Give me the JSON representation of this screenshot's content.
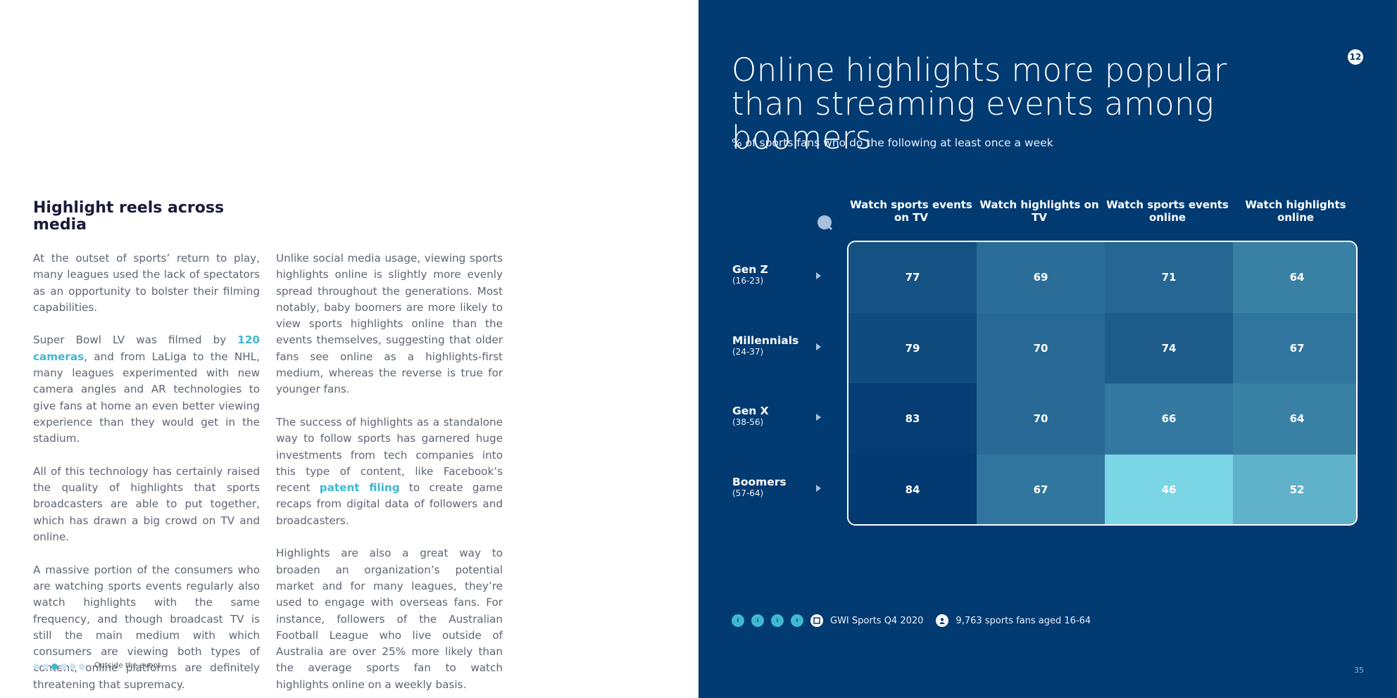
{
  "left_page": {
    "section_title": "Highlight reels across media",
    "column1": {
      "p1": "At the outset of sports’ return to play, many leagues used the lack of spectators as an opportunity to bolster their filming capabilities.",
      "p2_before": "Super Bowl LV was filmed by ",
      "p2_link": "120 cameras",
      "p2_after": ", and from LaLiga to the NHL, many leagues experimented with new camera angles and AR technologies to give fans at home an even better viewing experience than they would get in the stadium.",
      "p3": "All of this technology has certainly raised the quality of highlights that sports broadcasters are able to put together, which has drawn a big crowd on TV and online.",
      "p4": "A massive portion of the consumers who are watching sports events regularly also watch highlights with the same frequency, and though broadcast TV is still the main medium with which consumers are viewing both types of content, online platforms are definitely threatening that supremacy."
    },
    "column2": {
      "p1": "Unlike social media usage, viewing sports highlights online is slightly more evenly spread throughout the generations. Most notably, baby boomers are more likely to view sports highlights online than the events themselves, suggesting that older fans see online as a highlights-first medium, whereas the reverse is true for younger fans.",
      "p2_before": "The success of highlights as a standalone way to follow sports has garnered huge investments from tech companies into this type of content, like Facebook’s recent ",
      "p2_link": "patent filing",
      "p2_after": " to create game recaps from digital data of followers and broadcasters.",
      "p3": "Highlights are also a great way to broaden an organization’s potential market and for many leagues, they’re used to engage with overseas fans. For instance, followers of the Australian Football League who live outside of Australia are over 25% more likely than the average sports fan to watch highlights online on a weekly basis."
    },
    "section_label": "Outside the event",
    "accent_color": "#3fb8d0"
  },
  "right_page": {
    "title": "Online highlights more popular than streaming events among boomers",
    "subtitle": "% of sports fans who do the following at least once a week",
    "badge": "12",
    "page_number": "35",
    "footer": {
      "badges": [
        "i",
        "i",
        "i",
        "i"
      ],
      "source": "GWI Sports Q4 2020",
      "sample": "9,763 sports fans aged 16-64"
    },
    "background_color": "#023a72"
  },
  "chart_data": {
    "type": "heatmap",
    "title": "Online highlights more popular than streaming events among boomers",
    "subtitle": "% of sports fans who do the following at least once a week",
    "columns": [
      "Watch sports events on TV",
      "Watch highlights on TV",
      "Watch sports events online",
      "Watch highlights online"
    ],
    "rows": [
      {
        "name": "Gen Z",
        "range": "(16-23)",
        "values": [
          77,
          69,
          71,
          64
        ]
      },
      {
        "name": "Millennials",
        "range": "(24-37)",
        "values": [
          79,
          70,
          74,
          67
        ]
      },
      {
        "name": "Gen X",
        "range": "(38-56)",
        "values": [
          83,
          70,
          66,
          64
        ]
      },
      {
        "name": "Boomers",
        "range": "(57-64)",
        "values": [
          84,
          67,
          46,
          52
        ]
      }
    ],
    "unit": "%"
  }
}
